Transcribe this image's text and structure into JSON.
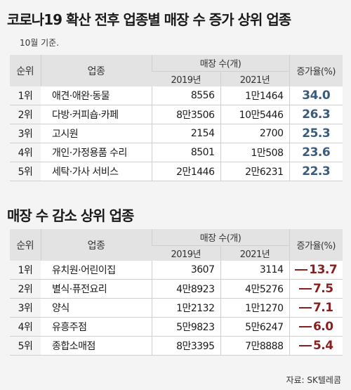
{
  "title": "코로나19 확산 전후 업종별 매장 수 증가 상위 업종",
  "note": "10월 기준.",
  "headers": {
    "rank": "순위",
    "industry": "업종",
    "stores": "매장 수(개)",
    "y2019": "2019년",
    "y2021": "2021년",
    "rate": "증가율(%)"
  },
  "increase_table": {
    "rows": [
      {
        "rank": "1위",
        "industry": "애견·애완·동물",
        "y2019": "8556",
        "y2021": "1만1464",
        "rate": "34.0"
      },
      {
        "rank": "2위",
        "industry": "다방·커피숍·카페",
        "y2019": "8만3506",
        "y2021": "10만5446",
        "rate": "26.3"
      },
      {
        "rank": "3위",
        "industry": "고시원",
        "y2019": "2154",
        "y2021": "2700",
        "rate": "25.3"
      },
      {
        "rank": "4위",
        "industry": "개인·가정용품 수리",
        "y2019": "8501",
        "y2021": "1만508",
        "rate": "23.6"
      },
      {
        "rank": "5위",
        "industry": "세탁·가사 서비스",
        "y2019": "2만1446",
        "y2021": "2만6231",
        "rate": "22.3"
      }
    ]
  },
  "decrease_section_title": "매장 수 감소 상위 업종",
  "decrease_table": {
    "rows": [
      {
        "rank": "1위",
        "industry": "유치원·어린이집",
        "y2019": "3607",
        "y2021": "3114",
        "rate": "13.7"
      },
      {
        "rank": "2위",
        "industry": "별식·퓨전요리",
        "y2019": "4만8923",
        "y2021": "4만5276",
        "rate": "7.5"
      },
      {
        "rank": "3위",
        "industry": "양식",
        "y2019": "1만2132",
        "y2021": "1만1270",
        "rate": "7.1"
      },
      {
        "rank": "4위",
        "industry": "유흥주점",
        "y2019": "5만9823",
        "y2021": "5만6247",
        "rate": "6.0"
      },
      {
        "rank": "5위",
        "industry": "종합소매점",
        "y2019": "8만3395",
        "y2021": "7만8888",
        "rate": "5.4"
      }
    ]
  },
  "source": "자료: SK텔레콤",
  "colors": {
    "increase_rate": "#3b5b7c",
    "decrease_rate": "#8a1f1f",
    "header_bg": "#e3e3e3",
    "page_bg": "#f4f4f4"
  }
}
